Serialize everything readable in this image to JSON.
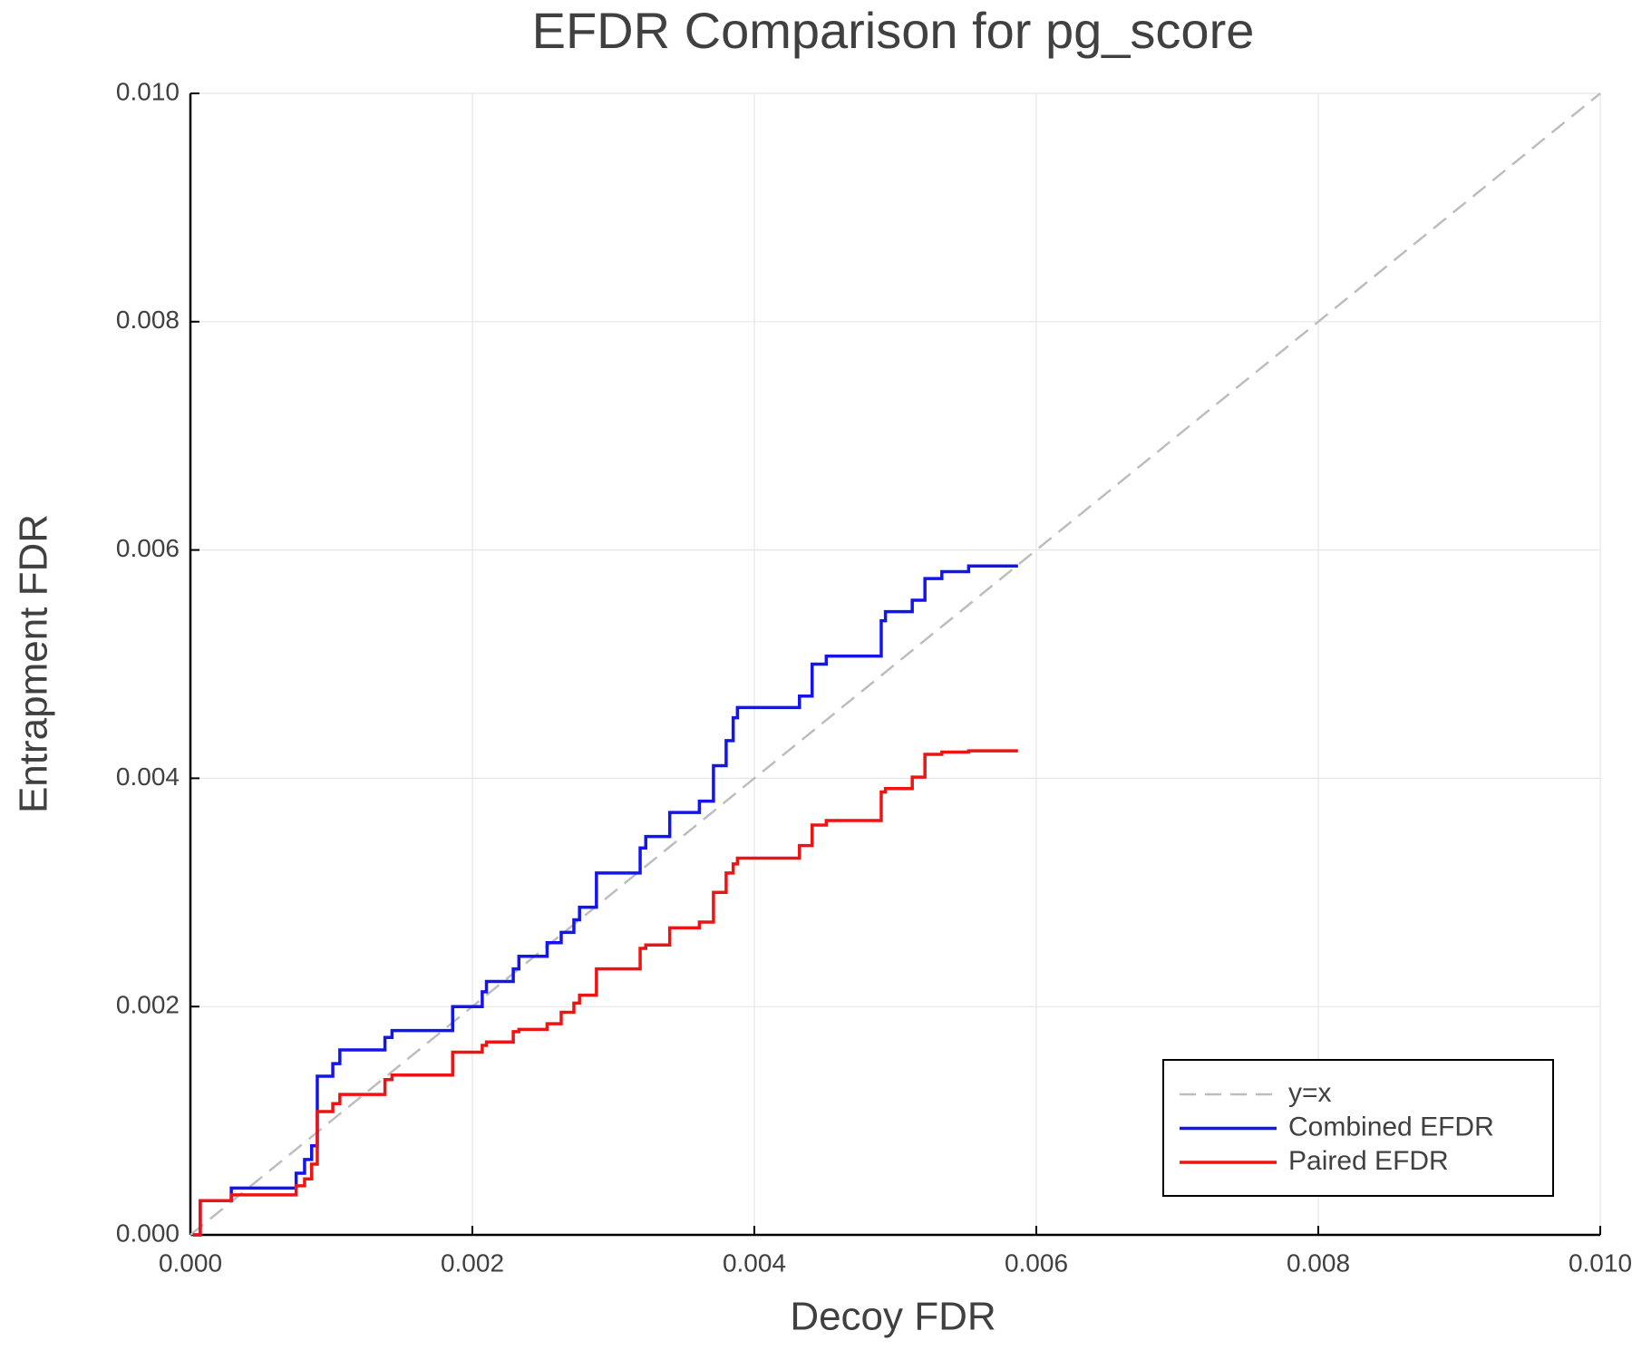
{
  "chart_data": {
    "type": "line",
    "title": "EFDR Comparison for pg_score",
    "x_label": "Decoy FDR",
    "y_label": "Entrapment FDR",
    "xlim": [
      0,
      0.01
    ],
    "ylim": [
      0,
      0.01
    ],
    "xticks": [
      {
        "value": 0,
        "label": "0.000"
      },
      {
        "value": 0.002,
        "label": "0.002"
      },
      {
        "value": 0.004,
        "label": "0.004"
      },
      {
        "value": 0.006,
        "label": "0.006"
      },
      {
        "value": 0.008,
        "label": "0.008"
      },
      {
        "value": 0.01,
        "label": "0.010"
      }
    ],
    "yticks": [
      {
        "value": 0,
        "label": "0.000"
      },
      {
        "value": 0.002,
        "label": "0.002"
      },
      {
        "value": 0.004,
        "label": "0.004"
      },
      {
        "value": 0.006,
        "label": "0.006"
      },
      {
        "value": 0.008,
        "label": "0.008"
      },
      {
        "value": 0.01,
        "label": "0.010"
      }
    ],
    "grid": true,
    "legend": "lower right",
    "series": [
      {
        "name": "y=x",
        "color": "#bdbdbd",
        "dash": true,
        "x": [
          0,
          0.01
        ],
        "values": [
          0,
          0.01
        ]
      },
      {
        "name": "Combined EFDR",
        "color": "#1414ee",
        "dash": false,
        "x": [
          2e-05,
          7e-05,
          7e-05,
          0.00029,
          0.00029,
          0.00075,
          0.00075,
          0.00081,
          0.00081,
          0.00086,
          0.00086,
          0.0009,
          0.0009,
          0.00101,
          0.00101,
          0.00106,
          0.00106,
          0.00138,
          0.00138,
          0.00143,
          0.00143,
          0.00186,
          0.00186,
          0.00207,
          0.00207,
          0.0021,
          0.0021,
          0.00229,
          0.00229,
          0.00233,
          0.00233,
          0.00253,
          0.00253,
          0.00263,
          0.00263,
          0.00272,
          0.00272,
          0.00276,
          0.00276,
          0.00288,
          0.00288,
          0.00319,
          0.00319,
          0.00323,
          0.00323,
          0.0034,
          0.0034,
          0.00361,
          0.00361,
          0.00371,
          0.00371,
          0.0038,
          0.0038,
          0.00385,
          0.00385,
          0.00388,
          0.00388,
          0.00432,
          0.00432,
          0.00441,
          0.00441,
          0.00451,
          0.00451,
          0.0049,
          0.0049,
          0.00493,
          0.00493,
          0.00512,
          0.00512,
          0.00521,
          0.00521,
          0.00533,
          0.00533,
          0.00552,
          0.00552,
          0.00587
        ],
        "values": [
          0,
          0,
          0.0003,
          0.0003,
          0.00041,
          0.00041,
          0.00054,
          0.00054,
          0.00066,
          0.00066,
          0.00078,
          0.00078,
          0.00139,
          0.00139,
          0.0015,
          0.0015,
          0.00162,
          0.00162,
          0.00173,
          0.00173,
          0.00179,
          0.00179,
          0.002,
          0.002,
          0.00213,
          0.00213,
          0.00222,
          0.00222,
          0.00233,
          0.00233,
          0.00244,
          0.00244,
          0.00256,
          0.00256,
          0.00265,
          0.00265,
          0.00276,
          0.00276,
          0.00287,
          0.00287,
          0.00317,
          0.00317,
          0.00339,
          0.00339,
          0.00349,
          0.00349,
          0.0037,
          0.0037,
          0.0038,
          0.0038,
          0.00411,
          0.00411,
          0.00433,
          0.00433,
          0.00453,
          0.00453,
          0.00462,
          0.00462,
          0.00472,
          0.00472,
          0.005,
          0.005,
          0.00507,
          0.00507,
          0.00538,
          0.00538,
          0.00546,
          0.00546,
          0.00556,
          0.00556,
          0.00575,
          0.00575,
          0.00581,
          0.00581,
          0.00586,
          0.00586
        ]
      },
      {
        "name": "Paired EFDR",
        "color": "#ee1414",
        "dash": false,
        "x": [
          2e-05,
          7e-05,
          7e-05,
          0.00029,
          0.00029,
          0.00075,
          0.00075,
          0.00081,
          0.00081,
          0.00086,
          0.00086,
          0.0009,
          0.0009,
          0.00101,
          0.00101,
          0.00106,
          0.00106,
          0.00138,
          0.00138,
          0.00143,
          0.00143,
          0.00186,
          0.00186,
          0.00207,
          0.00207,
          0.0021,
          0.0021,
          0.00229,
          0.00229,
          0.00233,
          0.00233,
          0.00253,
          0.00253,
          0.00263,
          0.00263,
          0.00272,
          0.00272,
          0.00276,
          0.00276,
          0.00288,
          0.00288,
          0.00319,
          0.00319,
          0.00323,
          0.00323,
          0.0034,
          0.0034,
          0.00361,
          0.00361,
          0.00371,
          0.00371,
          0.0038,
          0.0038,
          0.00385,
          0.00385,
          0.00388,
          0.00388,
          0.00432,
          0.00432,
          0.00441,
          0.00441,
          0.00451,
          0.00451,
          0.0049,
          0.0049,
          0.00493,
          0.00493,
          0.00512,
          0.00512,
          0.00521,
          0.00521,
          0.00533,
          0.00533,
          0.00552,
          0.00552,
          0.00587
        ],
        "values": [
          0,
          0,
          0.0003,
          0.0003,
          0.00035,
          0.00035,
          0.00043,
          0.00043,
          0.00049,
          0.00049,
          0.00062,
          0.00062,
          0.00108,
          0.00108,
          0.00115,
          0.00115,
          0.00123,
          0.00123,
          0.00136,
          0.00136,
          0.0014,
          0.0014,
          0.0016,
          0.0016,
          0.00166,
          0.00166,
          0.00169,
          0.00169,
          0.00178,
          0.00178,
          0.0018,
          0.0018,
          0.00185,
          0.00185,
          0.00195,
          0.00195,
          0.00203,
          0.00203,
          0.0021,
          0.0021,
          0.00233,
          0.00233,
          0.00251,
          0.00251,
          0.00254,
          0.00254,
          0.00269,
          0.00269,
          0.00274,
          0.00274,
          0.003,
          0.003,
          0.00317,
          0.00317,
          0.00325,
          0.00325,
          0.0033,
          0.0033,
          0.00341,
          0.00341,
          0.00359,
          0.00359,
          0.00363,
          0.00363,
          0.00388,
          0.00388,
          0.00391,
          0.00391,
          0.00401,
          0.00401,
          0.00421,
          0.00421,
          0.00423,
          0.00423,
          0.00424,
          0.00424
        ]
      }
    ]
  }
}
